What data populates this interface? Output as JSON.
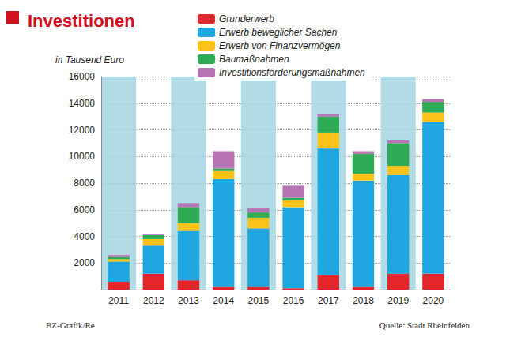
{
  "chart_data": {
    "type": "bar",
    "title": "Investitionen",
    "y_label": "in Tausend Euro",
    "credit": "BZ-Grafik/Re",
    "source": "Quelle: Stadt Rheinfelden",
    "stacked": true,
    "grid": true,
    "legend": "top",
    "categories": [
      "2011",
      "2012",
      "2013",
      "2014",
      "2015",
      "2016",
      "2017",
      "2018",
      "2019",
      "2020"
    ],
    "series": [
      {
        "name": "Grunderwerb",
        "color": "#e4262b",
        "values": [
          600,
          1200,
          700,
          200,
          200,
          100,
          1100,
          200,
          1200,
          1200
        ]
      },
      {
        "name": "Erwerb beweglicher Sachen",
        "color": "#1fa6e0",
        "values": [
          1500,
          2100,
          3700,
          8100,
          4400,
          6100,
          9500,
          8000,
          7400,
          11400
        ]
      },
      {
        "name": "Erwerb von Finanzvermögen",
        "color": "#fbc21a",
        "values": [
          200,
          500,
          600,
          600,
          800,
          500,
          1200,
          500,
          700,
          700
        ]
      },
      {
        "name": "Baumaßnahmen",
        "color": "#2faa55",
        "values": [
          150,
          300,
          1200,
          200,
          400,
          200,
          1200,
          1500,
          1700,
          800
        ]
      },
      {
        "name": "Investitionsförderungsmaßnahmen",
        "color": "#b873b4",
        "values": [
          150,
          100,
          300,
          1300,
          300,
          900,
          200,
          200,
          200,
          200
        ]
      }
    ],
    "ylim": [
      0,
      16000
    ],
    "yticks": [
      2000,
      4000,
      6000,
      8000,
      10000,
      12000,
      14000,
      16000
    ]
  }
}
